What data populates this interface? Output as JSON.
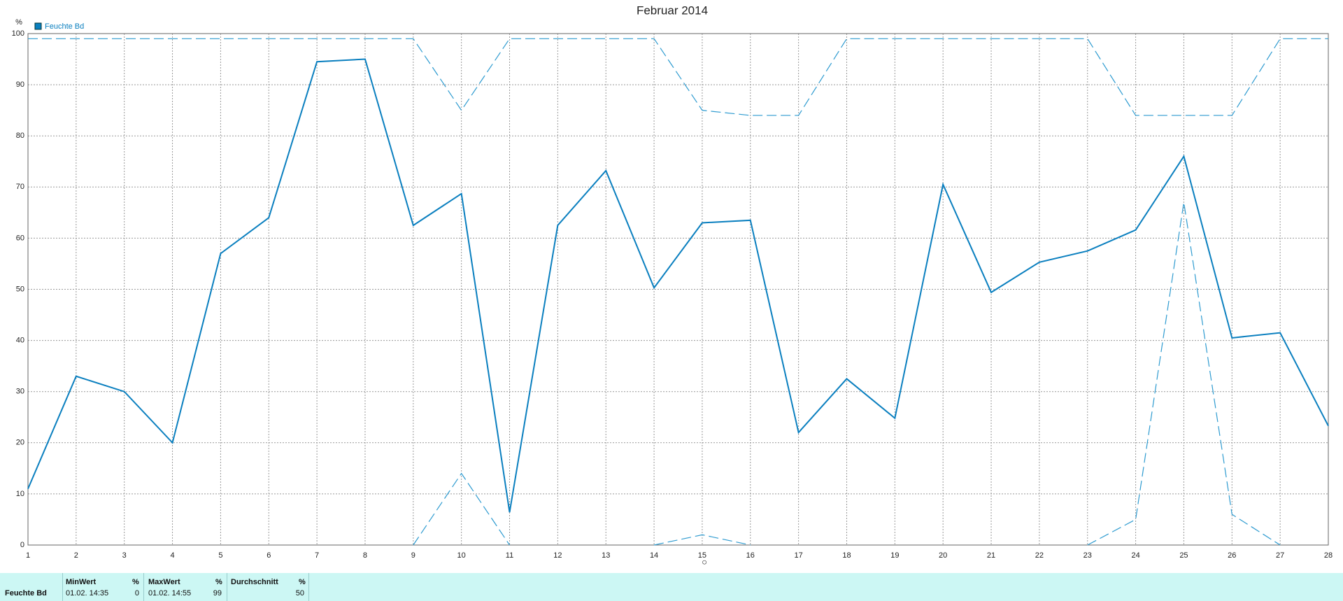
{
  "chart_data": {
    "type": "line",
    "title": "Februar 2014",
    "y_label": "%",
    "x": [
      1,
      2,
      3,
      4,
      5,
      6,
      7,
      8,
      9,
      10,
      11,
      12,
      13,
      14,
      15,
      16,
      17,
      18,
      19,
      20,
      21,
      22,
      23,
      24,
      25,
      26,
      27,
      28
    ],
    "xlim": [
      1,
      28
    ],
    "xticks": [
      1,
      2,
      3,
      4,
      5,
      6,
      7,
      8,
      9,
      10,
      11,
      12,
      13,
      14,
      15,
      16,
      17,
      18,
      19,
      20,
      21,
      22,
      23,
      24,
      25,
      26,
      27,
      28
    ],
    "ylim": [
      0,
      100
    ],
    "yticks": [
      0,
      10,
      20,
      30,
      40,
      50,
      60,
      70,
      80,
      90,
      100
    ],
    "grid": true,
    "series": [
      {
        "name": "Feuchte Bd",
        "color": "#0a7fbf",
        "style": "solid",
        "values": [
          11,
          33,
          30,
          20,
          57,
          64,
          94.5,
          95,
          62.5,
          68.7,
          6.4,
          62.5,
          73.2,
          50.3,
          63,
          63.5,
          22,
          32.5,
          24.8,
          70.5,
          49.4,
          55.3,
          57.5,
          61.6,
          76,
          40.5,
          41.5,
          23.3
        ]
      },
      {
        "color": "#2e9bd0",
        "style": "dashed",
        "values": [
          99,
          99,
          99,
          99,
          99,
          99,
          99,
          99,
          99,
          85,
          99,
          99,
          99,
          99,
          85,
          84,
          84,
          99,
          99,
          99,
          99,
          99,
          99,
          84,
          84,
          84,
          99,
          99
        ]
      },
      {
        "color": "#2e9bd0",
        "style": "dashed",
        "values": [
          null,
          null,
          null,
          null,
          null,
          null,
          null,
          null,
          0,
          14,
          0,
          null,
          null,
          0,
          2,
          0,
          null,
          null,
          null,
          null,
          null,
          null,
          0,
          5,
          67,
          6,
          0,
          null
        ]
      }
    ]
  },
  "table": {
    "row_label": "Feuchte Bd",
    "columns": [
      {
        "header": "MinWert",
        "unit": "%",
        "time": "01.02. 14:35",
        "value": 0
      },
      {
        "header": "MaxWert",
        "unit": "%",
        "time": "01.02. 14:55",
        "value": 99
      },
      {
        "header": "Durchschnitt",
        "unit": "%",
        "value": 50
      }
    ]
  }
}
